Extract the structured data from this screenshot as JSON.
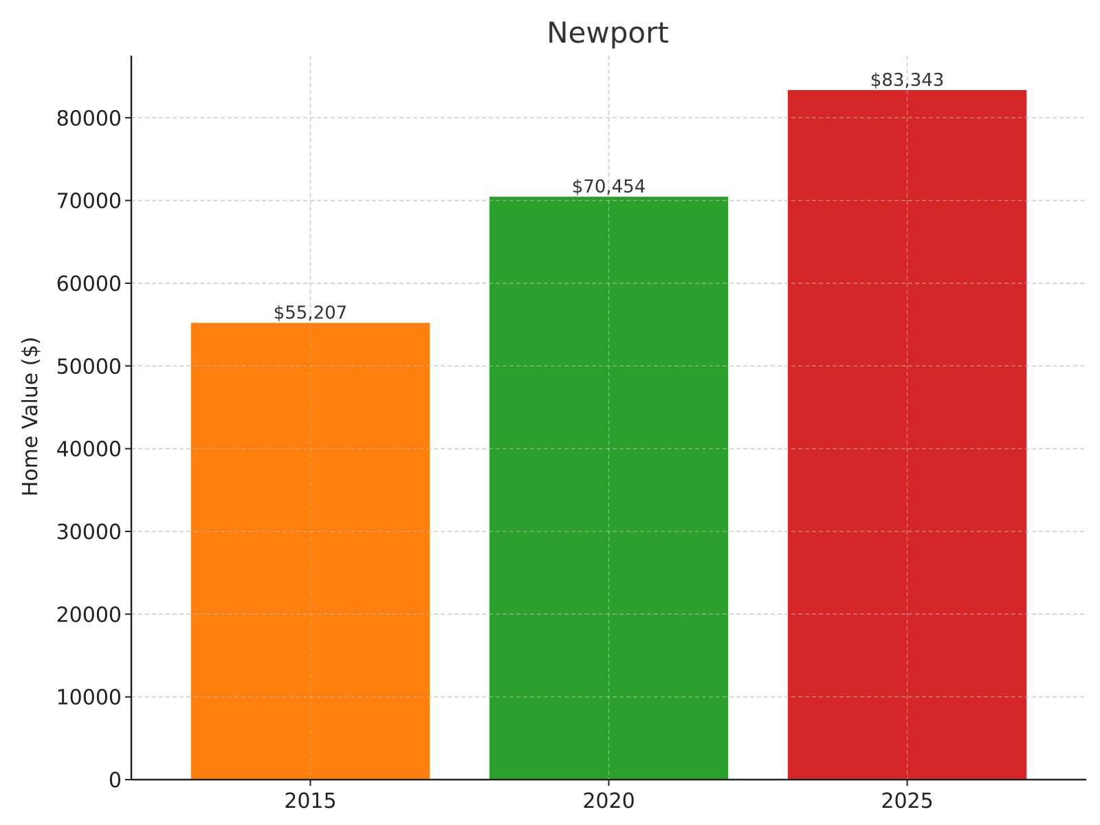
{
  "chart_data": {
    "type": "bar",
    "title": "Newport",
    "xlabel": "",
    "ylabel": "Home Value ($)",
    "categories": [
      "2015",
      "2020",
      "2025"
    ],
    "values": [
      55207,
      70454,
      83343
    ],
    "value_labels": [
      "$55,207",
      "$70,454",
      "$83,343"
    ],
    "colors": [
      "#ff7f0e",
      "#2ca02c",
      "#d62728"
    ],
    "ylim": [
      0,
      87500
    ],
    "yticks": [
      0,
      10000,
      20000,
      30000,
      40000,
      50000,
      60000,
      70000,
      80000
    ],
    "ytick_labels": [
      "0",
      "10000",
      "20000",
      "30000",
      "40000",
      "50000",
      "60000",
      "70000",
      "80000"
    ],
    "grid": true,
    "legend": "none"
  }
}
